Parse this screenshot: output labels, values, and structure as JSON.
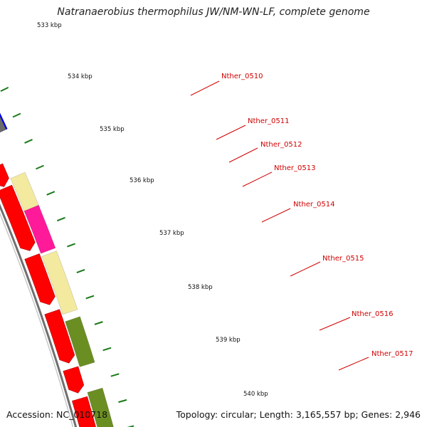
{
  "title": "Natranaerobius thermophilus JW/NM-WN-LF, complete genome",
  "footer": {
    "accession": "Accession: NC_010718",
    "summary": "Topology: circular; Length: 3,165,557 bp; Genes: 2,946"
  },
  "colors": {
    "backbone": "#8a8a8a",
    "cds": "#ff0000",
    "tick_major": "#1a7a1a",
    "label_line": "#d00000"
  },
  "scale_labels": [
    "533 kbp",
    "534 kbp",
    "535 kbp",
    "536 kbp",
    "537 kbp",
    "538 kbp",
    "539 kbp",
    "540 kbp"
  ],
  "genes": [
    {
      "name": "Nther_0510",
      "color": "#0000ff"
    },
    {
      "name": "Nther_0511",
      "color": "#6b6b6b"
    },
    {
      "name": "Nther_0512",
      "color": "#ff0000"
    },
    {
      "name": "Nther_0513",
      "color": "#f3eaa0"
    },
    {
      "name": "Nther_0514",
      "color": "#ff1a9a"
    },
    {
      "name": "Nther_0515",
      "color": "#f3eaa0"
    },
    {
      "name": "Nther_0516",
      "color": "#6b8e23"
    },
    {
      "name": "Nther_0517",
      "color": "#6b8e23"
    }
  ]
}
